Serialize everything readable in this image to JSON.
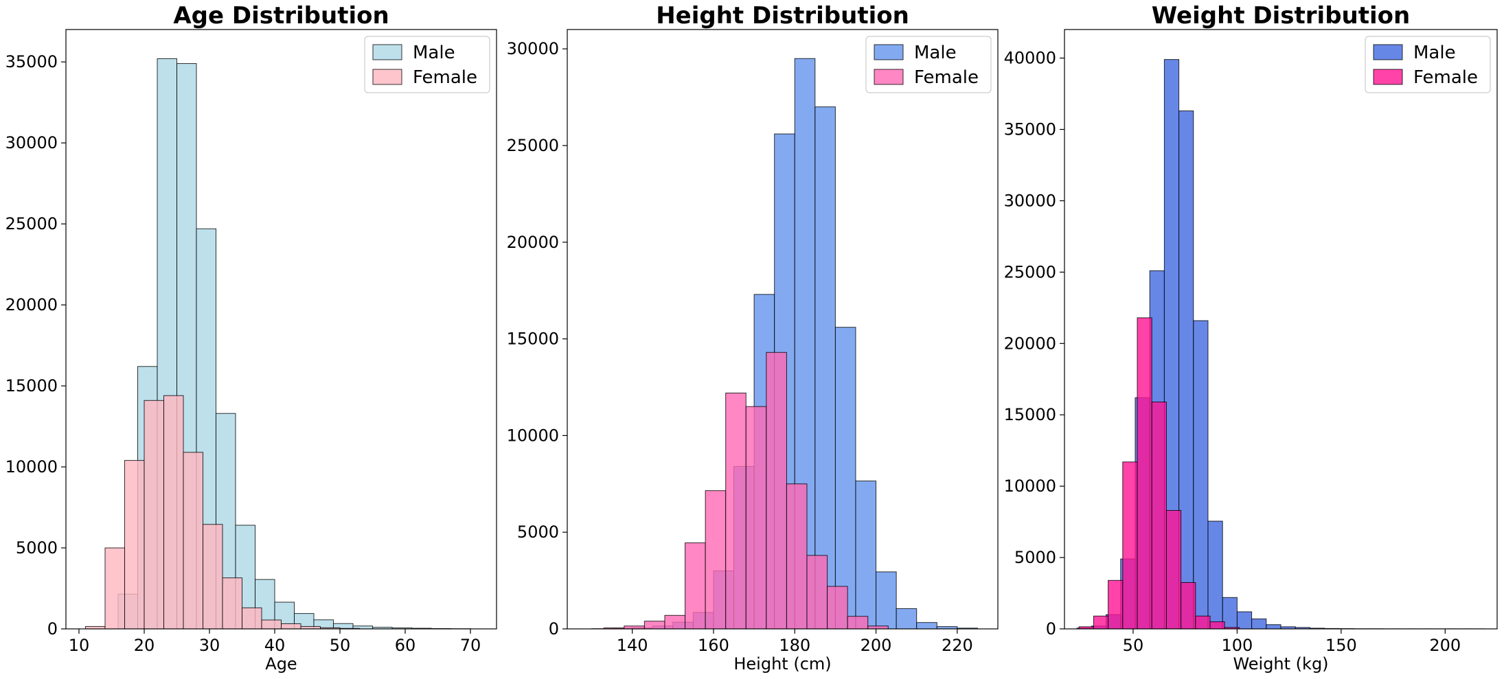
{
  "chart_data": [
    {
      "type": "histogram",
      "title": "Age Distribution",
      "xlabel": "Age",
      "ylabel": "",
      "xlim": [
        8,
        74
      ],
      "ylim": [
        0,
        37000
      ],
      "xticks": [
        10,
        20,
        30,
        40,
        50,
        60,
        70
      ],
      "yticks": [
        0,
        5000,
        10000,
        15000,
        20000,
        25000,
        30000,
        35000
      ],
      "legend_position": "top-right",
      "grid": false,
      "series": [
        {
          "name": "Male",
          "color": "#add8e6",
          "opacity": 0.8,
          "bins": [
            {
              "x0": 16,
              "x1": 19,
              "count": 2150
            },
            {
              "x0": 19,
              "x1": 22,
              "count": 16200
            },
            {
              "x0": 22,
              "x1": 25,
              "count": 35200
            },
            {
              "x0": 25,
              "x1": 28,
              "count": 34900
            },
            {
              "x0": 28,
              "x1": 31,
              "count": 24700
            },
            {
              "x0": 31,
              "x1": 34,
              "count": 13300
            },
            {
              "x0": 34,
              "x1": 37,
              "count": 6400
            },
            {
              "x0": 37,
              "x1": 40,
              "count": 3050
            },
            {
              "x0": 40,
              "x1": 43,
              "count": 1650
            },
            {
              "x0": 43,
              "x1": 46,
              "count": 950
            },
            {
              "x0": 46,
              "x1": 49,
              "count": 560
            },
            {
              "x0": 49,
              "x1": 52,
              "count": 330
            },
            {
              "x0": 52,
              "x1": 55,
              "count": 180
            },
            {
              "x0": 55,
              "x1": 58,
              "count": 100
            },
            {
              "x0": 58,
              "x1": 61,
              "count": 60
            },
            {
              "x0": 61,
              "x1": 64,
              "count": 40
            },
            {
              "x0": 64,
              "x1": 67,
              "count": 20
            },
            {
              "x0": 67,
              "x1": 70,
              "count": 10
            }
          ]
        },
        {
          "name": "Female",
          "color": "#ffb6c1",
          "opacity": 0.8,
          "bins": [
            {
              "x0": 11,
              "x1": 14,
              "count": 150
            },
            {
              "x0": 14,
              "x1": 17,
              "count": 5000
            },
            {
              "x0": 17,
              "x1": 20,
              "count": 10400
            },
            {
              "x0": 20,
              "x1": 23,
              "count": 14100
            },
            {
              "x0": 23,
              "x1": 26,
              "count": 14400
            },
            {
              "x0": 26,
              "x1": 29,
              "count": 10900
            },
            {
              "x0": 29,
              "x1": 32,
              "count": 6450
            },
            {
              "x0": 32,
              "x1": 35,
              "count": 3150
            },
            {
              "x0": 35,
              "x1": 38,
              "count": 1300
            },
            {
              "x0": 38,
              "x1": 41,
              "count": 550
            },
            {
              "x0": 41,
              "x1": 44,
              "count": 320
            },
            {
              "x0": 44,
              "x1": 47,
              "count": 150
            },
            {
              "x0": 47,
              "x1": 50,
              "count": 70
            },
            {
              "x0": 50,
              "x1": 53,
              "count": 30
            }
          ]
        }
      ]
    },
    {
      "type": "histogram",
      "title": "Height Distribution",
      "xlabel": "Height (cm)",
      "ylabel": "",
      "xlim": [
        124,
        230
      ],
      "ylim": [
        0,
        31000
      ],
      "xticks": [
        140,
        160,
        180,
        200,
        220
      ],
      "yticks": [
        0,
        5000,
        10000,
        15000,
        20000,
        25000,
        30000
      ],
      "legend_position": "top-right",
      "grid": false,
      "series": [
        {
          "name": "Male",
          "color": "#6495ed",
          "opacity": 0.8,
          "bins": [
            {
              "x0": 130,
              "x1": 135,
              "count": 10
            },
            {
              "x0": 135,
              "x1": 140,
              "count": 30
            },
            {
              "x0": 140,
              "x1": 145,
              "count": 50
            },
            {
              "x0": 145,
              "x1": 150,
              "count": 150
            },
            {
              "x0": 150,
              "x1": 155,
              "count": 350
            },
            {
              "x0": 155,
              "x1": 160,
              "count": 850
            },
            {
              "x0": 160,
              "x1": 165,
              "count": 3000
            },
            {
              "x0": 165,
              "x1": 170,
              "count": 8400
            },
            {
              "x0": 170,
              "x1": 175,
              "count": 17300
            },
            {
              "x0": 175,
              "x1": 180,
              "count": 25600
            },
            {
              "x0": 180,
              "x1": 185,
              "count": 29500
            },
            {
              "x0": 185,
              "x1": 190,
              "count": 27000
            },
            {
              "x0": 190,
              "x1": 195,
              "count": 15600
            },
            {
              "x0": 195,
              "x1": 200,
              "count": 7650
            },
            {
              "x0": 200,
              "x1": 205,
              "count": 2950
            },
            {
              "x0": 205,
              "x1": 210,
              "count": 1050
            },
            {
              "x0": 210,
              "x1": 215,
              "count": 330
            },
            {
              "x0": 215,
              "x1": 220,
              "count": 120
            },
            {
              "x0": 220,
              "x1": 225,
              "count": 40
            }
          ]
        },
        {
          "name": "Female",
          "color": "#ff69b4",
          "opacity": 0.8,
          "bins": [
            {
              "x0": 133,
              "x1": 138,
              "count": 50
            },
            {
              "x0": 138,
              "x1": 143,
              "count": 150
            },
            {
              "x0": 143,
              "x1": 148,
              "count": 400
            },
            {
              "x0": 148,
              "x1": 153,
              "count": 700
            },
            {
              "x0": 153,
              "x1": 158,
              "count": 4450
            },
            {
              "x0": 158,
              "x1": 163,
              "count": 7150
            },
            {
              "x0": 163,
              "x1": 168,
              "count": 12200
            },
            {
              "x0": 168,
              "x1": 173,
              "count": 11500
            },
            {
              "x0": 173,
              "x1": 178,
              "count": 14300
            },
            {
              "x0": 178,
              "x1": 183,
              "count": 7500
            },
            {
              "x0": 183,
              "x1": 188,
              "count": 3800
            },
            {
              "x0": 188,
              "x1": 193,
              "count": 2200
            },
            {
              "x0": 193,
              "x1": 198,
              "count": 650
            },
            {
              "x0": 198,
              "x1": 203,
              "count": 150
            }
          ]
        }
      ]
    },
    {
      "type": "histogram",
      "title": "Weight Distribution",
      "xlabel": "Weight (kg)",
      "ylabel": "",
      "xlim": [
        17,
        225
      ],
      "ylim": [
        0,
        42000
      ],
      "xticks": [
        50,
        100,
        150,
        200
      ],
      "yticks": [
        0,
        5000,
        10000,
        15000,
        20000,
        25000,
        30000,
        35000,
        40000
      ],
      "legend_position": "top-right",
      "grid": false,
      "series": [
        {
          "name": "Male",
          "color": "#4169e1",
          "opacity": 0.8,
          "bins": [
            {
              "x0": 23,
              "x1": 30,
              "count": 60
            },
            {
              "x0": 30,
              "x1": 37,
              "count": 200
            },
            {
              "x0": 37,
              "x1": 44,
              "count": 1000
            },
            {
              "x0": 44,
              "x1": 51,
              "count": 4900
            },
            {
              "x0": 51,
              "x1": 58,
              "count": 16200
            },
            {
              "x0": 58,
              "x1": 65,
              "count": 25100
            },
            {
              "x0": 65,
              "x1": 72,
              "count": 39900
            },
            {
              "x0": 72,
              "x1": 79,
              "count": 36300
            },
            {
              "x0": 79,
              "x1": 86,
              "count": 21600
            },
            {
              "x0": 86,
              "x1": 93,
              "count": 7550
            },
            {
              "x0": 93,
              "x1": 100,
              "count": 2200
            },
            {
              "x0": 100,
              "x1": 107,
              "count": 1200
            },
            {
              "x0": 107,
              "x1": 114,
              "count": 700
            },
            {
              "x0": 114,
              "x1": 121,
              "count": 300
            },
            {
              "x0": 121,
              "x1": 128,
              "count": 150
            },
            {
              "x0": 128,
              "x1": 135,
              "count": 100
            },
            {
              "x0": 135,
              "x1": 142,
              "count": 50
            },
            {
              "x0": 142,
              "x1": 149,
              "count": 30
            },
            {
              "x0": 149,
              "x1": 156,
              "count": 20
            },
            {
              "x0": 156,
              "x1": 163,
              "count": 10
            },
            {
              "x0": 163,
              "x1": 170,
              "count": 10
            },
            {
              "x0": 170,
              "x1": 177,
              "count": 5
            },
            {
              "x0": 177,
              "x1": 184,
              "count": 5
            },
            {
              "x0": 184,
              "x1": 191,
              "count": 5
            },
            {
              "x0": 191,
              "x1": 198,
              "count": 5
            },
            {
              "x0": 198,
              "x1": 205,
              "count": 5
            },
            {
              "x0": 205,
              "x1": 212,
              "count": 5
            },
            {
              "x0": 212,
              "x1": 219,
              "count": 5
            }
          ]
        },
        {
          "name": "Female",
          "color": "#ff1493",
          "opacity": 0.8,
          "bins": [
            {
              "x0": 24,
              "x1": 31,
              "count": 150
            },
            {
              "x0": 31,
              "x1": 38,
              "count": 900
            },
            {
              "x0": 38,
              "x1": 45,
              "count": 3400
            },
            {
              "x0": 45,
              "x1": 52,
              "count": 11700
            },
            {
              "x0": 52,
              "x1": 59,
              "count": 21800
            },
            {
              "x0": 59,
              "x1": 66,
              "count": 15900
            },
            {
              "x0": 66,
              "x1": 73,
              "count": 8300
            },
            {
              "x0": 73,
              "x1": 80,
              "count": 3250
            },
            {
              "x0": 80,
              "x1": 87,
              "count": 900
            },
            {
              "x0": 87,
              "x1": 94,
              "count": 500
            },
            {
              "x0": 94,
              "x1": 101,
              "count": 100
            }
          ]
        }
      ]
    }
  ]
}
